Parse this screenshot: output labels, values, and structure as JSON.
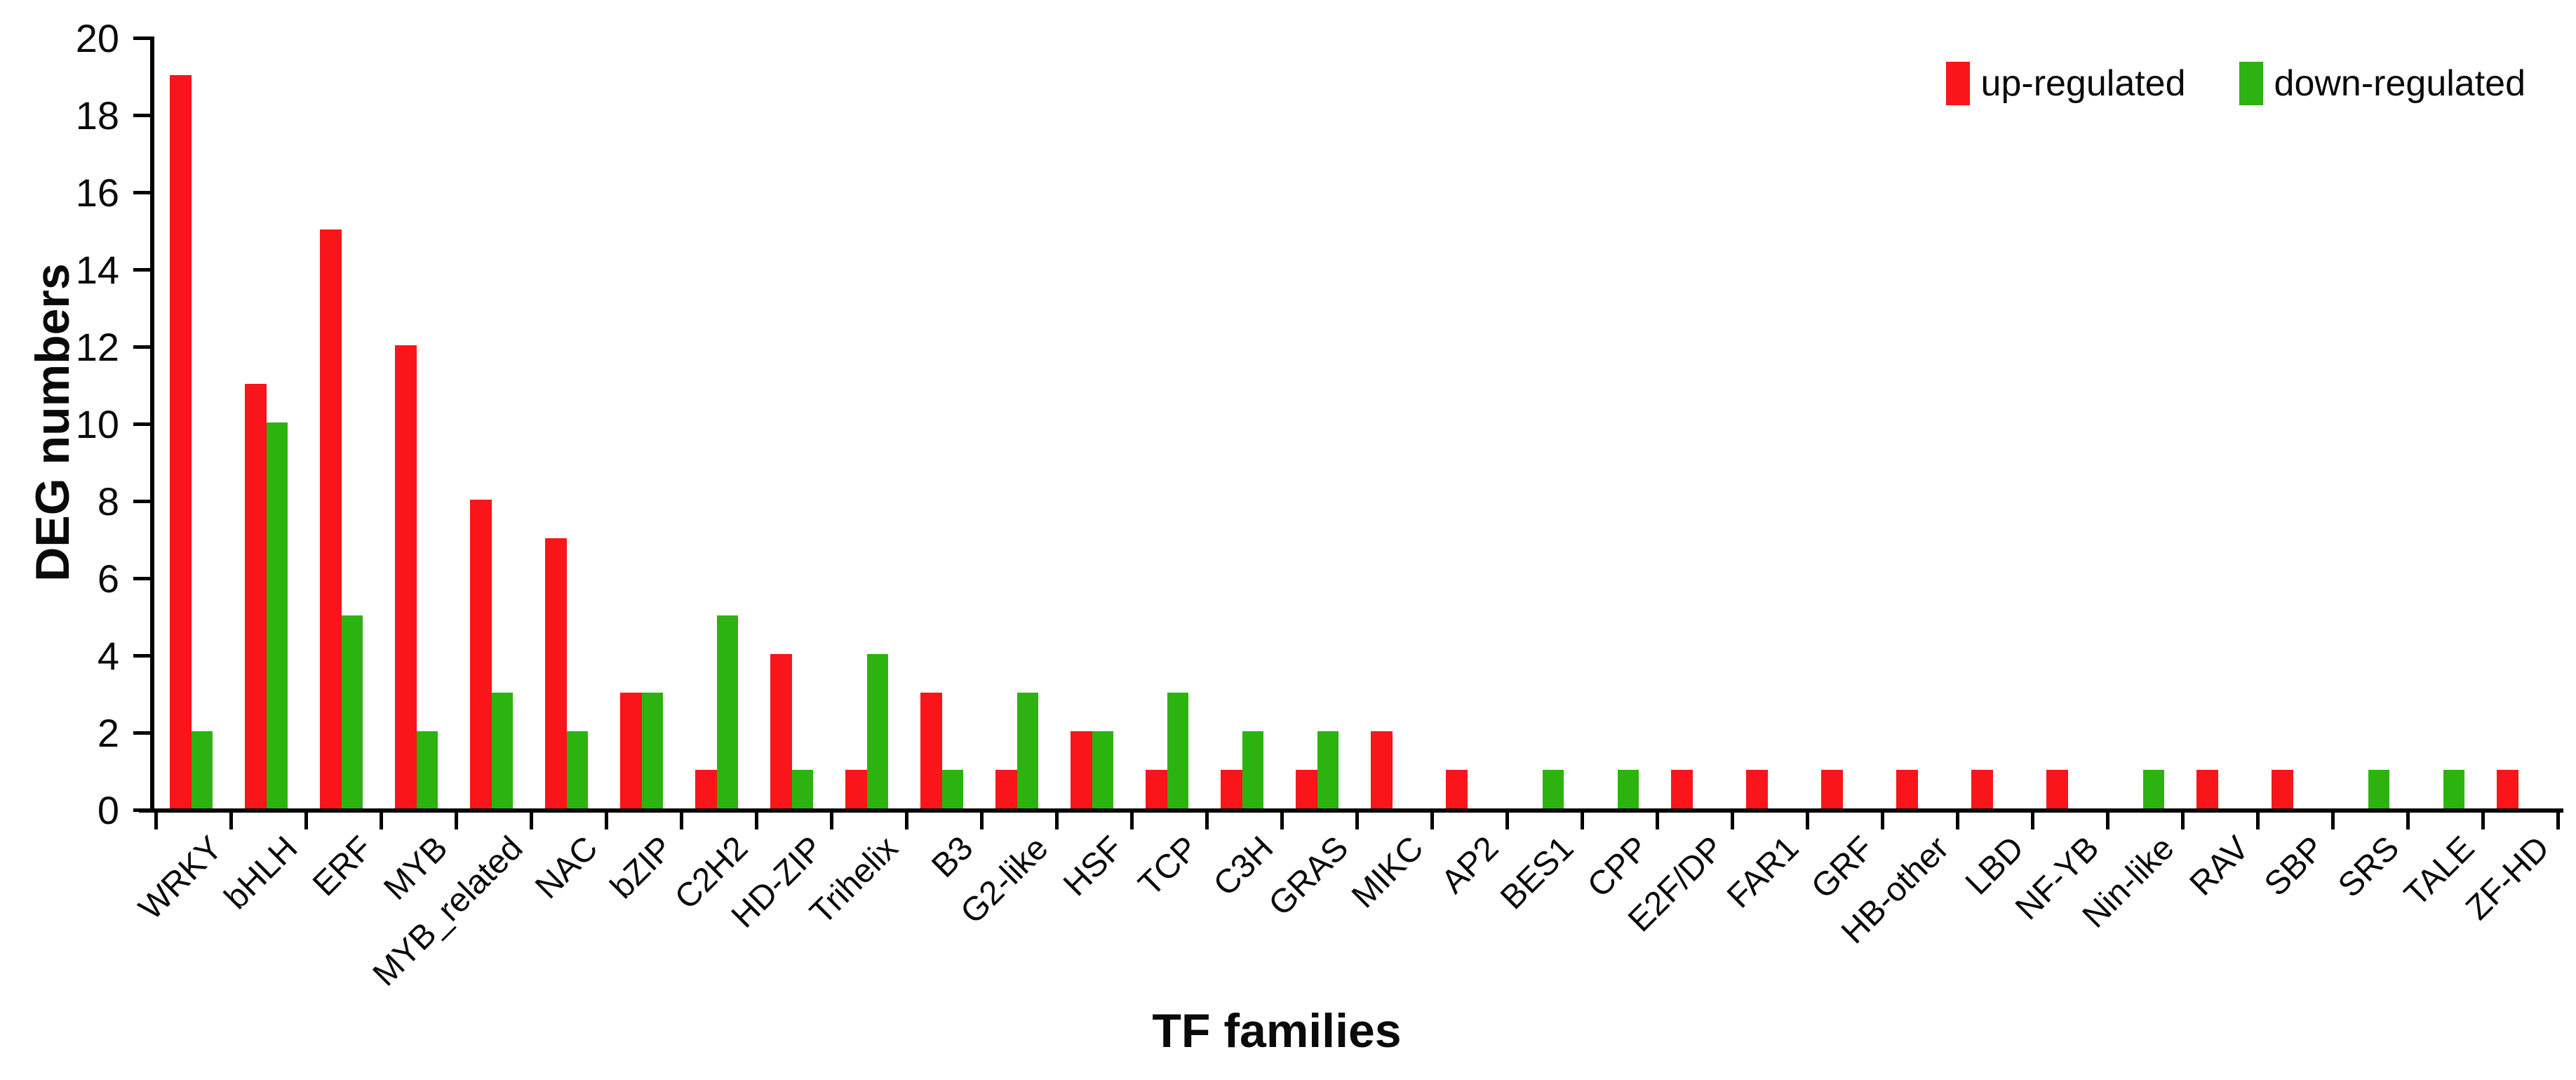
{
  "axes": {
    "y_title": "DEG numbers",
    "x_title": "TF families",
    "y_ticks": [
      "0",
      "2",
      "4",
      "6",
      "8",
      "10",
      "12",
      "14",
      "16",
      "18",
      "20"
    ]
  },
  "chart_data": {
    "type": "bar",
    "title": "",
    "xlabel": "TF families",
    "ylabel": "DEG numbers",
    "ylim": [
      0,
      20
    ],
    "ytick_step": 2,
    "grid": false,
    "legend_position": "top-right",
    "categories": [
      "WRKY",
      "bHLH",
      "ERF",
      "MYB",
      "MYB_related",
      "NAC",
      "bZIP",
      "C2H2",
      "HD-ZIP",
      "Trihelix",
      "B3",
      "G2-like",
      "HSF",
      "TCP",
      "C3H",
      "GRAS",
      "MIKC",
      "AP2",
      "BES1",
      "CPP",
      "E2F/DP",
      "FAR1",
      "GRF",
      "HB-other",
      "LBD",
      "NF-YB",
      "Nin-like",
      "RAV",
      "SBP",
      "SRS",
      "TALE",
      "ZF-HD"
    ],
    "series": [
      {
        "name": "up-regulated",
        "color": "#f9151a",
        "values": [
          19,
          11,
          15,
          12,
          8,
          7,
          3,
          1,
          4,
          1,
          3,
          1,
          2,
          1,
          1,
          1,
          2,
          1,
          0,
          0,
          1,
          1,
          1,
          1,
          1,
          1,
          0,
          1,
          1,
          0,
          0,
          1
        ]
      },
      {
        "name": "down-regulated",
        "color": "#2db30f",
        "values": [
          2,
          10,
          5,
          2,
          3,
          2,
          3,
          5,
          1,
          4,
          1,
          3,
          2,
          3,
          2,
          2,
          0,
          0,
          1,
          1,
          0,
          0,
          0,
          0,
          0,
          0,
          1,
          0,
          0,
          1,
          1,
          0
        ]
      }
    ]
  }
}
